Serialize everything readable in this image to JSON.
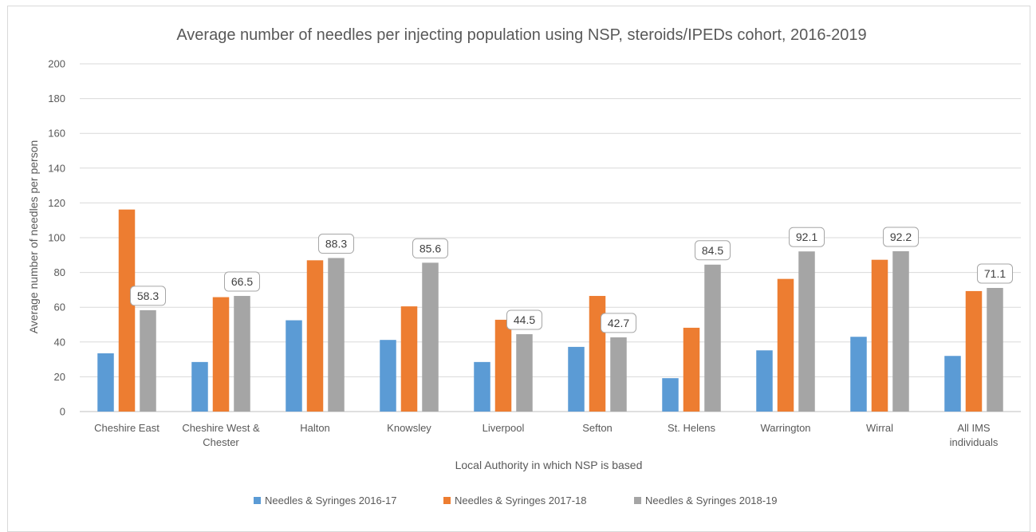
{
  "chart_data": {
    "type": "bar",
    "title": "Average number of needles per injecting population using NSP, steroids/IPEDs cohort, 2016-2019",
    "xlabel": "Local Authority in which NSP is based",
    "ylabel": "Average number of needles per person",
    "ylim": [
      0,
      200
    ],
    "yticks": [
      0,
      20,
      40,
      60,
      80,
      100,
      120,
      140,
      160,
      180,
      200
    ],
    "grid": true,
    "legend_position": "bottom",
    "categories": [
      [
        "Cheshire East"
      ],
      [
        "Cheshire West &",
        "Chester"
      ],
      [
        "Halton"
      ],
      [
        "Knowsley"
      ],
      [
        "Liverpool"
      ],
      [
        "Sefton"
      ],
      [
        "St. Helens"
      ],
      [
        "Warrington"
      ],
      [
        "Wirral"
      ],
      [
        "All IMS",
        "individuals"
      ]
    ],
    "series": [
      {
        "name": "Needles & Syringes 2016-17",
        "color": "#5b9bd5",
        "values": [
          33.5,
          28.5,
          52.5,
          41.2,
          28.5,
          37.2,
          19.2,
          35.2,
          43.0,
          32.0
        ]
      },
      {
        "name": "Needles & Syringes 2017-18",
        "color": "#ed7d31",
        "values": [
          116.2,
          65.8,
          87.0,
          60.5,
          52.8,
          66.5,
          48.2,
          76.3,
          87.3,
          69.3
        ]
      },
      {
        "name": "Needles & Syringes 2018-19",
        "color": "#a5a5a5",
        "values": [
          58.3,
          66.5,
          88.3,
          85.6,
          44.5,
          42.7,
          84.5,
          92.1,
          92.2,
          71.1
        ],
        "data_labels": [
          "58.3",
          "66.5",
          "88.3",
          "85.6",
          "44.5",
          "42.7",
          "84.5",
          "92.1",
          "92.2",
          "71.1"
        ]
      }
    ]
  }
}
